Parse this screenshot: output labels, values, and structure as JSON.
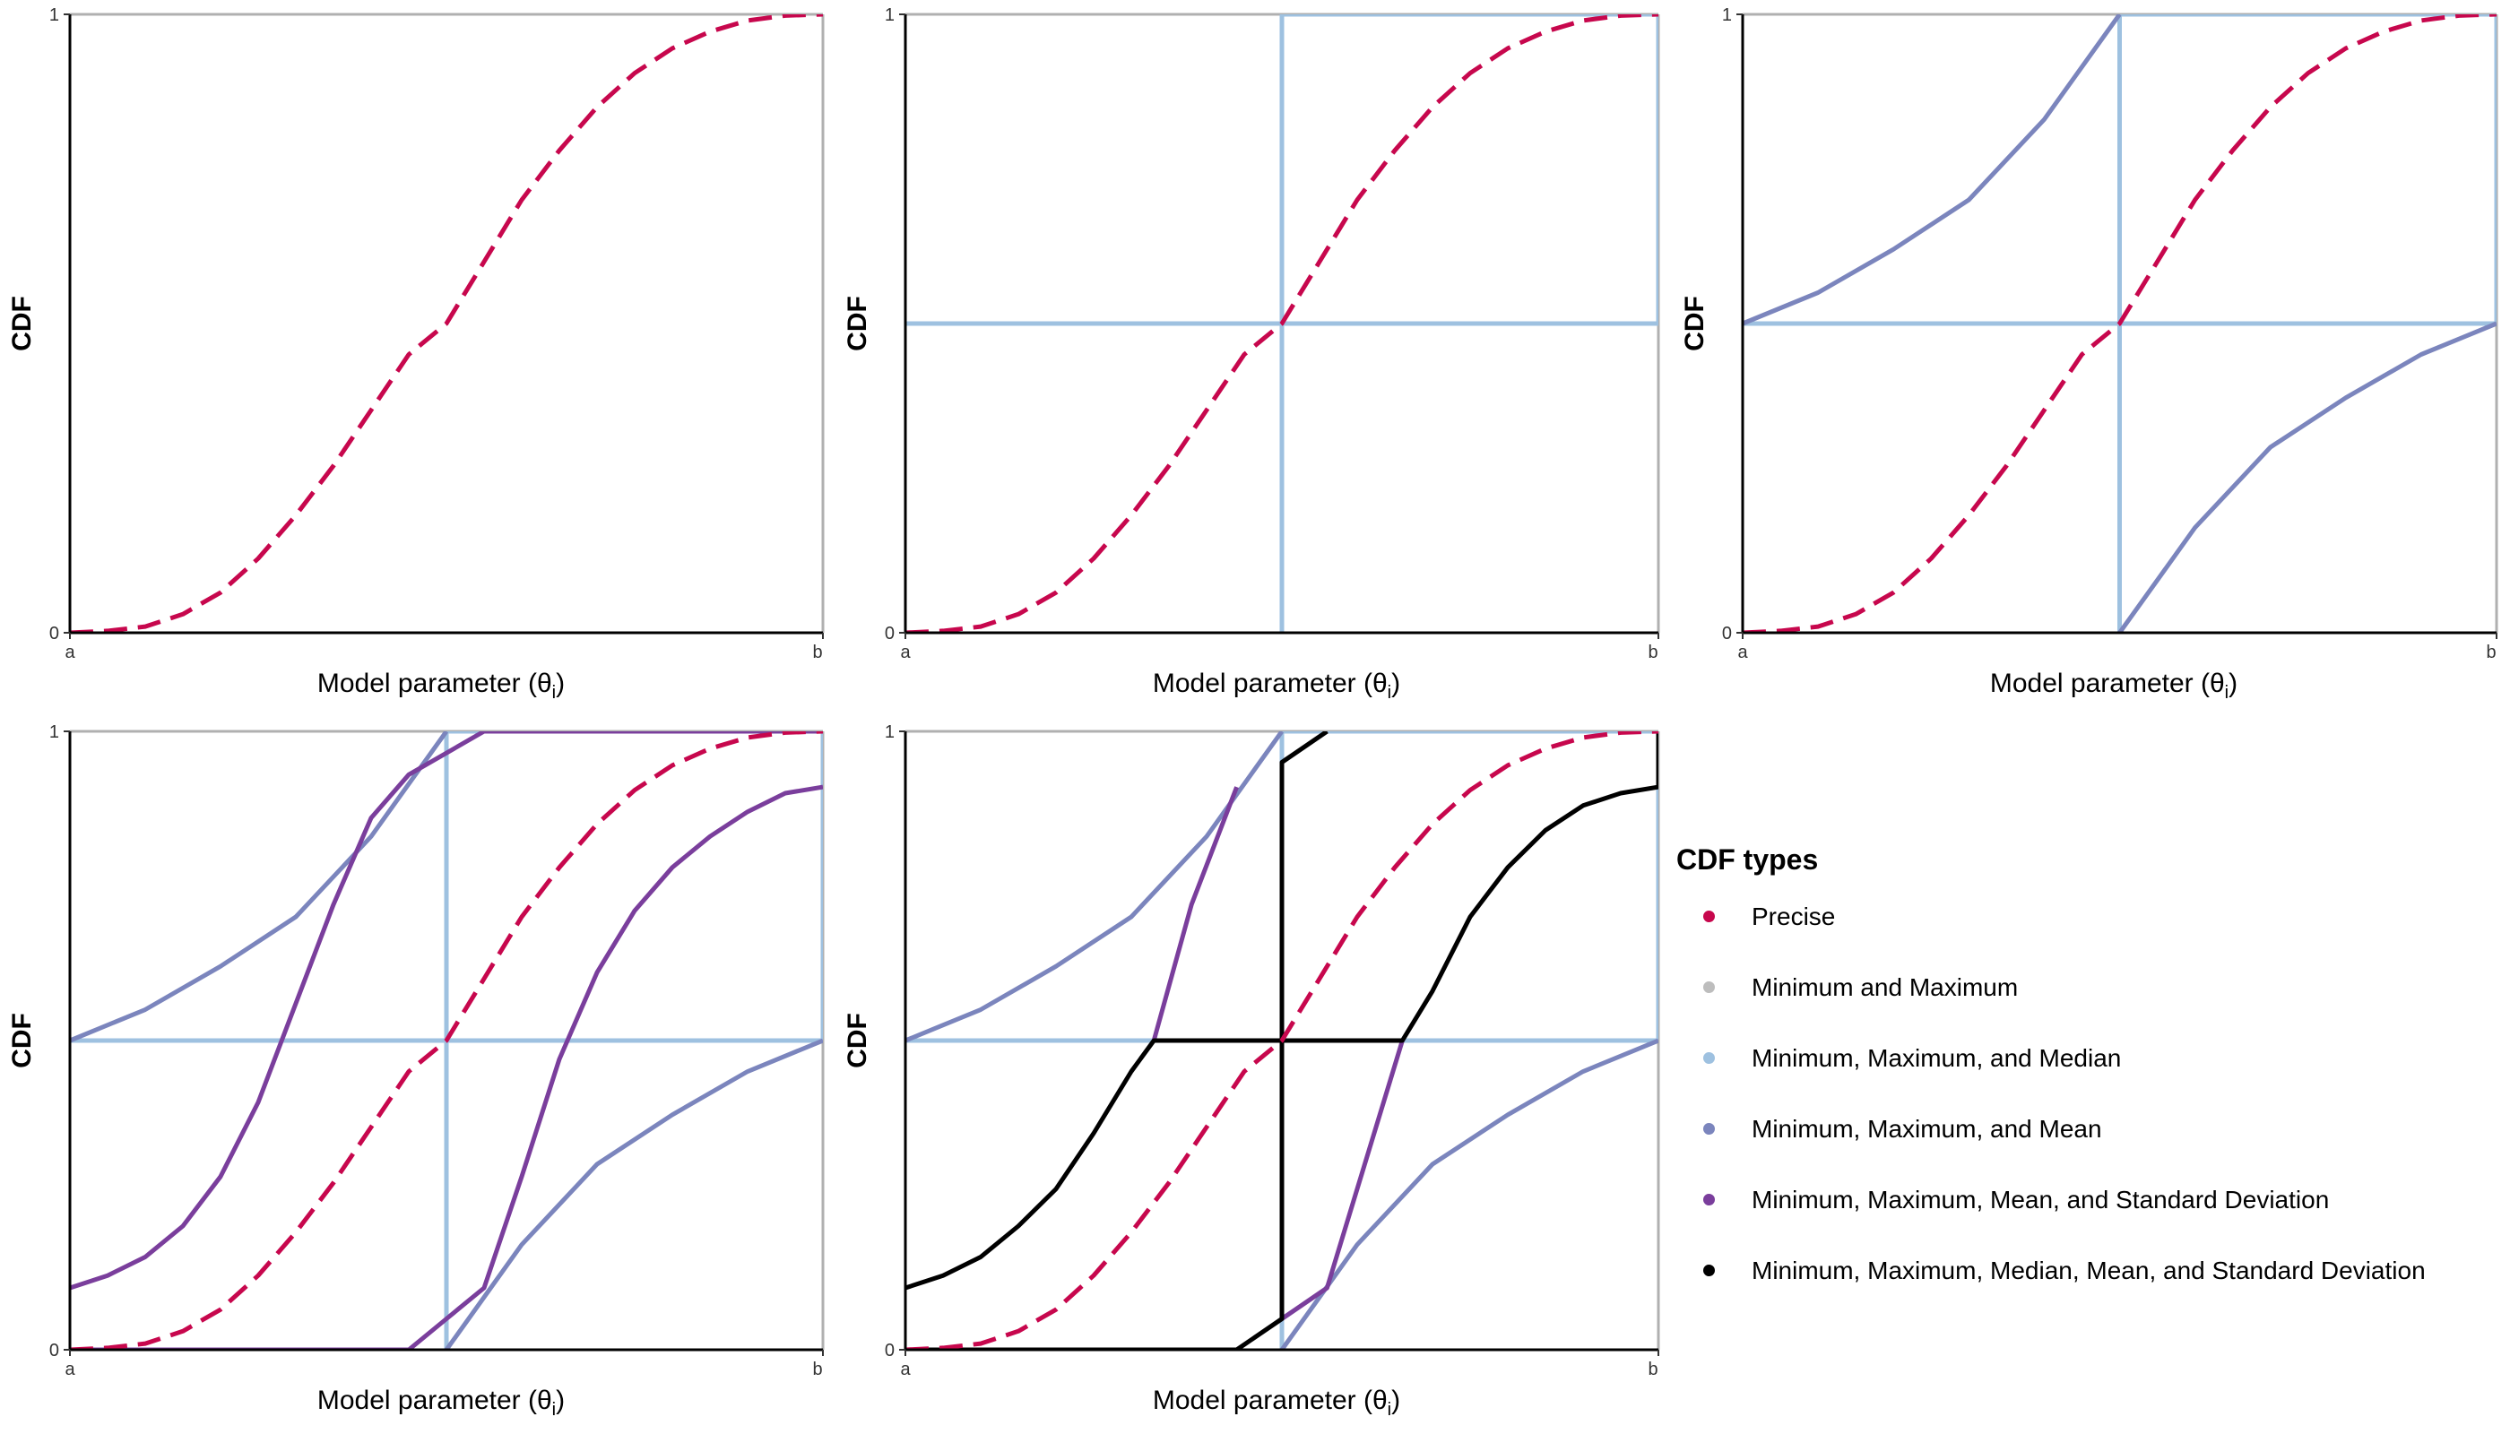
{
  "colors": {
    "precise": "#C7074D",
    "minmax": "#BDBDBD",
    "median": "#9EC1E0",
    "mean": "#7B85BD",
    "sd": "#7A3E9C",
    "all": "#000000",
    "frame": "#B0B0B0"
  },
  "axis": {
    "x_title": "Model parameter (θ",
    "x_subscript": "i",
    "x_title_close": ")",
    "y_title": "CDF",
    "x_ticks": [
      "a",
      "b"
    ],
    "y_ticks": [
      "0",
      "1"
    ]
  },
  "legend": {
    "title": "CDF types",
    "items": [
      {
        "label": "Precise",
        "color": "#C7074D"
      },
      {
        "label": "Minimum and Maximum",
        "color": "#BDBDBD"
      },
      {
        "label": "Minimum, Maximum, and Median",
        "color": "#9EC1E0"
      },
      {
        "label": "Minimum, Maximum, and Mean",
        "color": "#7B85BD"
      },
      {
        "label": "Minimum, Maximum, Mean, and Standard Deviation",
        "color": "#7A3E9C"
      },
      {
        "label": "Minimum, Maximum, Median, Mean, and Standard Deviation",
        "color": "#000000"
      }
    ]
  },
  "chart_data": [
    {
      "type": "line",
      "panel": 1,
      "xlabel": "Model parameter (θi)",
      "ylabel": "CDF",
      "xlim": [
        0,
        1
      ],
      "ylim": [
        0,
        1
      ],
      "series": [
        {
          "name": "Precise",
          "kind": "precise",
          "style": "dashed",
          "x": [
            0,
            0.05,
            0.1,
            0.15,
            0.2,
            0.25,
            0.3,
            0.35,
            0.4,
            0.45,
            0.5,
            0.55,
            0.6,
            0.65,
            0.7,
            0.75,
            0.8,
            0.85,
            0.9,
            0.95,
            1.0
          ],
          "y": [
            0,
            0.003,
            0.01,
            0.03,
            0.065,
            0.12,
            0.19,
            0.27,
            0.36,
            0.45,
            0.5,
            0.6,
            0.7,
            0.78,
            0.85,
            0.905,
            0.945,
            0.972,
            0.99,
            0.998,
            1.0
          ]
        }
      ]
    },
    {
      "type": "line",
      "panel": 2,
      "xlabel": "Model parameter (θi)",
      "ylabel": "CDF",
      "xlim": [
        0,
        1
      ],
      "ylim": [
        0,
        1
      ],
      "series": [
        {
          "name": "Precise",
          "kind": "precise",
          "style": "dashed",
          "x": [
            0,
            0.05,
            0.1,
            0.15,
            0.2,
            0.25,
            0.3,
            0.35,
            0.4,
            0.45,
            0.5,
            0.55,
            0.6,
            0.65,
            0.7,
            0.75,
            0.8,
            0.85,
            0.9,
            0.95,
            1.0
          ],
          "y": [
            0,
            0.003,
            0.01,
            0.03,
            0.065,
            0.12,
            0.19,
            0.27,
            0.36,
            0.45,
            0.5,
            0.6,
            0.7,
            0.78,
            0.85,
            0.905,
            0.945,
            0.972,
            0.99,
            0.998,
            1.0
          ]
        },
        {
          "name": "Median box",
          "kind": "median",
          "segments": [
            [
              [
                0,
                0.5
              ],
              [
                1,
                0.5
              ]
            ],
            [
              [
                0.5,
                0
              ],
              [
                0.5,
                1
              ]
            ],
            [
              [
                0.5,
                1
              ],
              [
                1,
                1
              ]
            ],
            [
              [
                1,
                0.5
              ],
              [
                1,
                1
              ]
            ]
          ]
        }
      ]
    },
    {
      "type": "line",
      "panel": 3,
      "xlabel": "Model parameter (θi)",
      "ylabel": "CDF",
      "xlim": [
        0,
        1
      ],
      "ylim": [
        0,
        1
      ],
      "series": [
        {
          "name": "Precise",
          "kind": "precise",
          "style": "dashed",
          "x": [
            0,
            0.05,
            0.1,
            0.15,
            0.2,
            0.25,
            0.3,
            0.35,
            0.4,
            0.45,
            0.5,
            0.55,
            0.6,
            0.65,
            0.7,
            0.75,
            0.8,
            0.85,
            0.9,
            0.95,
            1.0
          ],
          "y": [
            0,
            0.003,
            0.01,
            0.03,
            0.065,
            0.12,
            0.19,
            0.27,
            0.36,
            0.45,
            0.5,
            0.6,
            0.7,
            0.78,
            0.85,
            0.905,
            0.945,
            0.972,
            0.99,
            0.998,
            1.0
          ]
        },
        {
          "name": "Median box",
          "kind": "median",
          "segments": [
            [
              [
                0,
                0.5
              ],
              [
                1,
                0.5
              ]
            ],
            [
              [
                0.5,
                0
              ],
              [
                0.5,
                1
              ]
            ],
            [
              [
                0.5,
                1
              ],
              [
                1,
                1
              ]
            ],
            [
              [
                1,
                0.5
              ],
              [
                1,
                1
              ]
            ]
          ]
        },
        {
          "name": "Mean upper bound",
          "kind": "mean",
          "x": [
            0,
            0.1,
            0.2,
            0.3,
            0.4,
            0.5
          ],
          "y": [
            0.5,
            0.55,
            0.62,
            0.7,
            0.83,
            1.0
          ]
        },
        {
          "name": "Mean lower bound",
          "kind": "mean",
          "x": [
            0.5,
            0.6,
            0.7,
            0.8,
            0.9,
            1.0
          ],
          "y": [
            0.0,
            0.17,
            0.3,
            0.38,
            0.45,
            0.5
          ]
        }
      ]
    },
    {
      "type": "line",
      "panel": 4,
      "xlabel": "Model parameter (θi)",
      "ylabel": "CDF",
      "xlim": [
        0,
        1
      ],
      "ylim": [
        0,
        1
      ],
      "series": [
        {
          "name": "Precise",
          "kind": "precise",
          "style": "dashed",
          "x": [
            0,
            0.05,
            0.1,
            0.15,
            0.2,
            0.25,
            0.3,
            0.35,
            0.4,
            0.45,
            0.5,
            0.55,
            0.6,
            0.65,
            0.7,
            0.75,
            0.8,
            0.85,
            0.9,
            0.95,
            1.0
          ],
          "y": [
            0,
            0.003,
            0.01,
            0.03,
            0.065,
            0.12,
            0.19,
            0.27,
            0.36,
            0.45,
            0.5,
            0.6,
            0.7,
            0.78,
            0.85,
            0.905,
            0.945,
            0.972,
            0.99,
            0.998,
            1.0
          ]
        },
        {
          "name": "Median box",
          "kind": "median",
          "segments": [
            [
              [
                0,
                0.5
              ],
              [
                1,
                0.5
              ]
            ],
            [
              [
                0.5,
                0
              ],
              [
                0.5,
                1
              ]
            ],
            [
              [
                0.5,
                1
              ],
              [
                1,
                1
              ]
            ],
            [
              [
                1,
                0.5
              ],
              [
                1,
                1
              ]
            ]
          ]
        },
        {
          "name": "Mean upper bound",
          "kind": "mean",
          "x": [
            0,
            0.1,
            0.2,
            0.3,
            0.4,
            0.5
          ],
          "y": [
            0.5,
            0.55,
            0.62,
            0.7,
            0.83,
            1.0
          ]
        },
        {
          "name": "Mean lower bound",
          "kind": "mean",
          "x": [
            0.5,
            0.6,
            0.7,
            0.8,
            0.9,
            1.0
          ],
          "y": [
            0.0,
            0.17,
            0.3,
            0.38,
            0.45,
            0.5
          ]
        },
        {
          "name": "SD upper bound",
          "kind": "sd",
          "x": [
            0,
            0.05,
            0.1,
            0.15,
            0.2,
            0.25,
            0.3,
            0.35,
            0.4,
            0.45,
            0.55,
            1.0
          ],
          "y": [
            0.1,
            0.12,
            0.15,
            0.2,
            0.28,
            0.4,
            0.56,
            0.72,
            0.86,
            0.93,
            1.0,
            1.0
          ]
        },
        {
          "name": "SD lower bound",
          "kind": "sd",
          "x": [
            0,
            0.45,
            0.5,
            0.55,
            0.6,
            0.65,
            0.7,
            0.75,
            0.8,
            0.85,
            0.9,
            0.95,
            1.0
          ],
          "y": [
            0,
            0,
            0.05,
            0.1,
            0.28,
            0.47,
            0.61,
            0.71,
            0.78,
            0.83,
            0.87,
            0.9,
            0.91
          ]
        }
      ]
    },
    {
      "type": "line",
      "panel": 5,
      "xlabel": "Model parameter (θi)",
      "ylabel": "CDF",
      "xlim": [
        0,
        1
      ],
      "ylim": [
        0,
        1
      ],
      "series": [
        {
          "name": "Precise",
          "kind": "precise",
          "style": "dashed",
          "x": [
            0,
            0.05,
            0.1,
            0.15,
            0.2,
            0.25,
            0.3,
            0.35,
            0.4,
            0.45,
            0.5,
            0.55,
            0.6,
            0.65,
            0.7,
            0.75,
            0.8,
            0.85,
            0.9,
            0.95,
            1.0
          ],
          "y": [
            0,
            0.003,
            0.01,
            0.03,
            0.065,
            0.12,
            0.19,
            0.27,
            0.36,
            0.45,
            0.5,
            0.6,
            0.7,
            0.78,
            0.85,
            0.905,
            0.945,
            0.972,
            0.99,
            0.998,
            1.0
          ]
        },
        {
          "name": "Median box",
          "kind": "median",
          "segments": [
            [
              [
                0,
                0.5
              ],
              [
                1,
                0.5
              ]
            ],
            [
              [
                0.5,
                0
              ],
              [
                0.5,
                1
              ]
            ],
            [
              [
                0.5,
                1
              ],
              [
                1,
                1
              ]
            ],
            [
              [
                1,
                0.5
              ],
              [
                1,
                1
              ]
            ]
          ]
        },
        {
          "name": "Mean upper bound",
          "kind": "mean",
          "x": [
            0,
            0.1,
            0.2,
            0.3,
            0.4,
            0.5
          ],
          "y": [
            0.5,
            0.55,
            0.62,
            0.7,
            0.83,
            1.0
          ]
        },
        {
          "name": "Mean lower bound",
          "kind": "mean",
          "x": [
            0.5,
            0.6,
            0.7,
            0.8,
            0.9,
            1.0
          ],
          "y": [
            0.0,
            0.17,
            0.3,
            0.38,
            0.45,
            0.5
          ]
        },
        {
          "name": "SD upper bound",
          "kind": "sd",
          "x": [
            0.33,
            0.38,
            0.44
          ],
          "y": [
            0.5,
            0.72,
            0.91
          ]
        },
        {
          "name": "SD lower bound",
          "kind": "sd",
          "x": [
            0.5,
            0.56,
            0.61,
            0.66
          ],
          "y": [
            0.05,
            0.1,
            0.3,
            0.5
          ]
        },
        {
          "name": "All constraints upper bound",
          "kind": "all",
          "x": [
            0,
            0.05,
            0.1,
            0.15,
            0.2,
            0.25,
            0.3,
            0.33,
            0.5,
            0.5,
            0.56
          ],
          "y": [
            0.1,
            0.12,
            0.15,
            0.2,
            0.26,
            0.35,
            0.45,
            0.5,
            0.5,
            0.95,
            1.0
          ]
        },
        {
          "name": "All constraints lower bound",
          "kind": "all",
          "x": [
            0,
            0.44,
            0.5,
            0.5,
            0.66,
            0.7,
            0.75,
            0.8,
            0.85,
            0.9,
            0.95,
            1.0,
            1.0
          ],
          "y": [
            0,
            0,
            0.05,
            0.5,
            0.5,
            0.58,
            0.7,
            0.78,
            0.84,
            0.88,
            0.9,
            0.91,
            1.0
          ]
        }
      ]
    }
  ]
}
